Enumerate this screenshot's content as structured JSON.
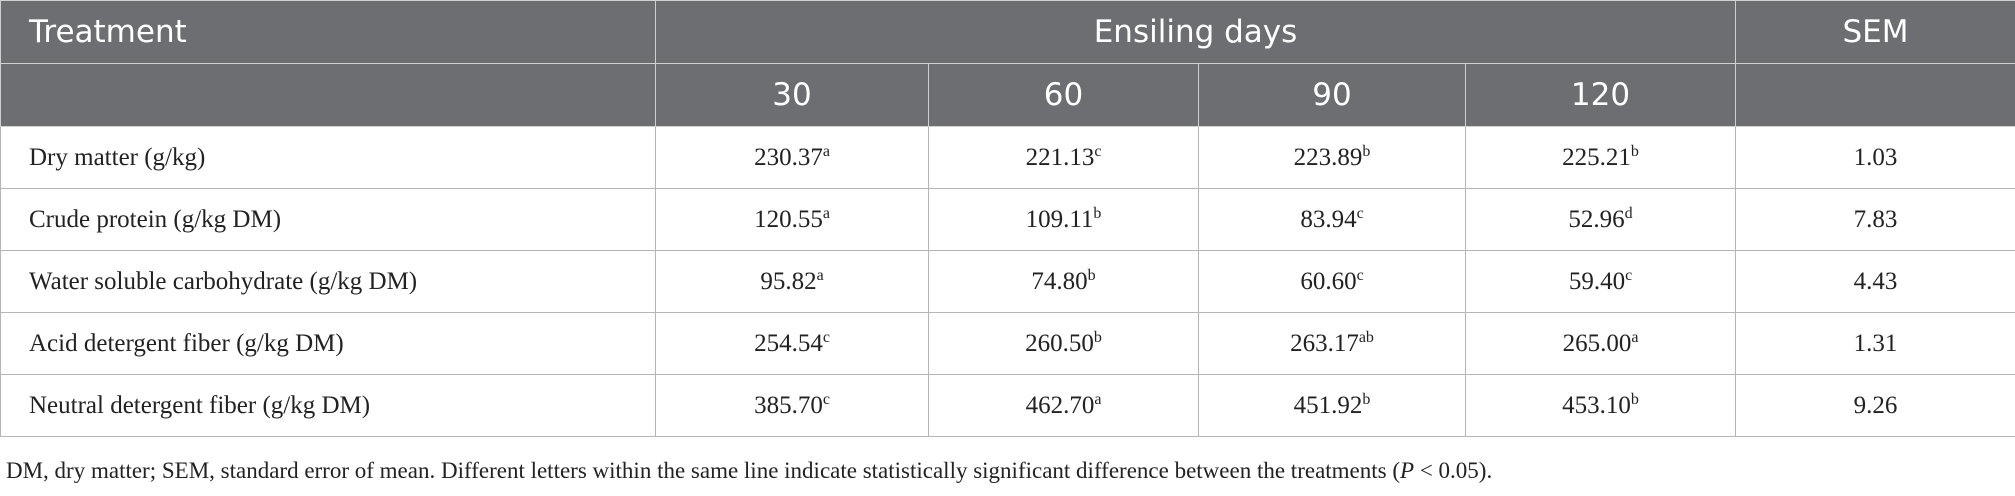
{
  "table": {
    "header": {
      "treatment": "Treatment",
      "group": "Ensiling days",
      "sem": "SEM",
      "days": [
        "30",
        "60",
        "90",
        "120"
      ]
    },
    "rows": [
      {
        "label": "Dry matter (g/kg)",
        "cells": [
          {
            "value": "230.37",
            "sup": "a"
          },
          {
            "value": "221.13",
            "sup": "c"
          },
          {
            "value": "223.89",
            "sup": "b"
          },
          {
            "value": "225.21",
            "sup": "b"
          }
        ],
        "sem": "1.03"
      },
      {
        "label": "Crude protein (g/kg DM)",
        "cells": [
          {
            "value": "120.55",
            "sup": "a"
          },
          {
            "value": "109.11",
            "sup": "b"
          },
          {
            "value": "83.94",
            "sup": "c"
          },
          {
            "value": "52.96",
            "sup": "d"
          }
        ],
        "sem": "7.83"
      },
      {
        "label": "Water soluble carbohydrate (g/kg DM)",
        "cells": [
          {
            "value": "95.82",
            "sup": "a"
          },
          {
            "value": "74.80",
            "sup": "b"
          },
          {
            "value": "60.60",
            "sup": "c"
          },
          {
            "value": "59.40",
            "sup": "c"
          }
        ],
        "sem": "4.43"
      },
      {
        "label": "Acid detergent fiber (g/kg DM)",
        "cells": [
          {
            "value": "254.54",
            "sup": "c"
          },
          {
            "value": "260.50",
            "sup": "b"
          },
          {
            "value": "263.17",
            "sup": "ab"
          },
          {
            "value": "265.00",
            "sup": "a"
          }
        ],
        "sem": "1.31"
      },
      {
        "label": "Neutral detergent fiber (g/kg DM)",
        "cells": [
          {
            "value": "385.70",
            "sup": "c"
          },
          {
            "value": "462.70",
            "sup": "a"
          },
          {
            "value": "451.92",
            "sup": "b"
          },
          {
            "value": "453.10",
            "sup": "b"
          }
        ],
        "sem": "9.26"
      }
    ]
  },
  "footnote": {
    "text": "DM, dry matter; SEM, standard error of mean. Different letters within the same line indicate statistically significant difference between the treatments (",
    "italic": "P",
    "end": " < 0.05)."
  }
}
